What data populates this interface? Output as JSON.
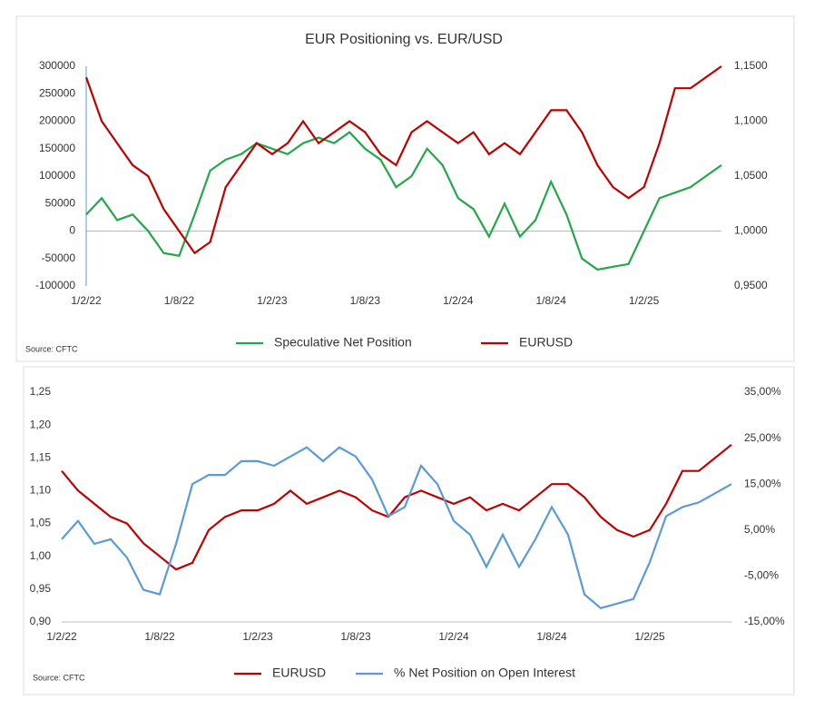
{
  "chart_data": [
    {
      "type": "line",
      "title": "EUR Positioning vs. EUR/USD",
      "source": "Source: CFTC",
      "categories": [
        "1/2/22",
        null,
        null,
        null,
        null,
        null,
        "1/8/22",
        null,
        null,
        null,
        null,
        null,
        "1/2/23",
        null,
        null,
        null,
        null,
        null,
        "1/8/23",
        null,
        null,
        null,
        null,
        null,
        "1/2/24",
        null,
        null,
        null,
        null,
        null,
        "1/8/24",
        null,
        null,
        null,
        null,
        null,
        "1/2/25",
        null,
        null,
        null,
        null,
        null
      ],
      "ylim": [
        -100000,
        300000
      ],
      "yticks": [
        -100000,
        -50000,
        0,
        50000,
        100000,
        150000,
        200000,
        250000,
        300000
      ],
      "y2lim": [
        0.95,
        1.15
      ],
      "y2ticks": [
        {
          "value": 0.95,
          "label": "0,9500"
        },
        {
          "value": 1.0,
          "label": "1,0000"
        },
        {
          "value": 1.05,
          "label": "1,0500"
        },
        {
          "value": 1.1,
          "label": "1,1000"
        },
        {
          "value": 1.15,
          "label": "1,1500"
        }
      ],
      "series": [
        {
          "name": "Speculative Net Position",
          "color": "#22a84a",
          "axis": "y",
          "values": [
            30000,
            60000,
            20000,
            30000,
            0,
            -40000,
            -45000,
            30000,
            110000,
            130000,
            140000,
            160000,
            150000,
            140000,
            160000,
            170000,
            160000,
            180000,
            150000,
            130000,
            80000,
            100000,
            150000,
            120000,
            60000,
            40000,
            -10000,
            50000,
            -10000,
            20000,
            90000,
            30000,
            -50000,
            -70000,
            -65000,
            -60000,
            0,
            60000,
            70000,
            80000,
            100000,
            120000
          ]
        },
        {
          "name": "EURUSD",
          "color": "#c00000",
          "axis": "y2",
          "values": [
            1.14,
            1.1,
            1.08,
            1.06,
            1.05,
            1.02,
            1.0,
            0.98,
            0.99,
            1.04,
            1.06,
            1.08,
            1.07,
            1.08,
            1.1,
            1.08,
            1.09,
            1.1,
            1.09,
            1.07,
            1.06,
            1.09,
            1.1,
            1.09,
            1.08,
            1.09,
            1.07,
            1.08,
            1.07,
            1.09,
            1.11,
            1.11,
            1.09,
            1.06,
            1.04,
            1.03,
            1.04,
            1.08,
            1.13,
            1.13,
            1.14,
            1.15
          ]
        }
      ]
    },
    {
      "type": "line",
      "source": "Source: CFTC",
      "categories": [
        "1/2/22",
        null,
        null,
        null,
        null,
        null,
        "1/8/22",
        null,
        null,
        null,
        null,
        null,
        "1/2/23",
        null,
        null,
        null,
        null,
        null,
        "1/8/23",
        null,
        null,
        null,
        null,
        null,
        "1/2/24",
        null,
        null,
        null,
        null,
        null,
        "1/8/24",
        null,
        null,
        null,
        null,
        null,
        "1/2/25",
        null,
        null,
        null,
        null,
        null
      ],
      "ylim": [
        0.9,
        1.25
      ],
      "yticks": [
        {
          "value": 0.9,
          "label": "0,90"
        },
        {
          "value": 0.95,
          "label": "0,95"
        },
        {
          "value": 1.0,
          "label": "1,00"
        },
        {
          "value": 1.05,
          "label": "1,05"
        },
        {
          "value": 1.1,
          "label": "1,10"
        },
        {
          "value": 1.15,
          "label": "1,15"
        },
        {
          "value": 1.2,
          "label": "1,20"
        },
        {
          "value": 1.25,
          "label": "1,25"
        }
      ],
      "y2lim": [
        -15,
        35
      ],
      "y2ticks": [
        {
          "value": -15,
          "label": "-15,00%"
        },
        {
          "value": -5,
          "label": "-5,00%"
        },
        {
          "value": 5,
          "label": "5,00%"
        },
        {
          "value": 15,
          "label": "15,00%"
        },
        {
          "value": 25,
          "label": "25,00%"
        },
        {
          "value": 35,
          "label": "35,00%"
        }
      ],
      "series": [
        {
          "name": "EURUSD",
          "color": "#c00000",
          "axis": "y",
          "values": [
            1.13,
            1.1,
            1.08,
            1.06,
            1.05,
            1.02,
            1.0,
            0.98,
            0.99,
            1.04,
            1.06,
            1.07,
            1.07,
            1.08,
            1.1,
            1.08,
            1.09,
            1.1,
            1.09,
            1.07,
            1.06,
            1.09,
            1.1,
            1.09,
            1.08,
            1.09,
            1.07,
            1.08,
            1.07,
            1.09,
            1.11,
            1.11,
            1.09,
            1.06,
            1.04,
            1.03,
            1.04,
            1.08,
            1.13,
            1.13,
            1.15,
            1.17
          ]
        },
        {
          "name": "% Net Position on Open Interest",
          "color": "#5b9bd5",
          "axis": "y2",
          "values": [
            3,
            7,
            2,
            3,
            -1,
            -8,
            -9,
            2,
            15,
            17,
            17,
            20,
            20,
            19,
            21,
            23,
            20,
            23,
            21,
            16,
            8,
            10,
            19,
            15,
            7,
            4,
            -3,
            4,
            -3,
            3,
            10,
            4,
            -9,
            -12,
            -11,
            -10,
            -2,
            8,
            10,
            11,
            13,
            15
          ]
        }
      ]
    }
  ]
}
